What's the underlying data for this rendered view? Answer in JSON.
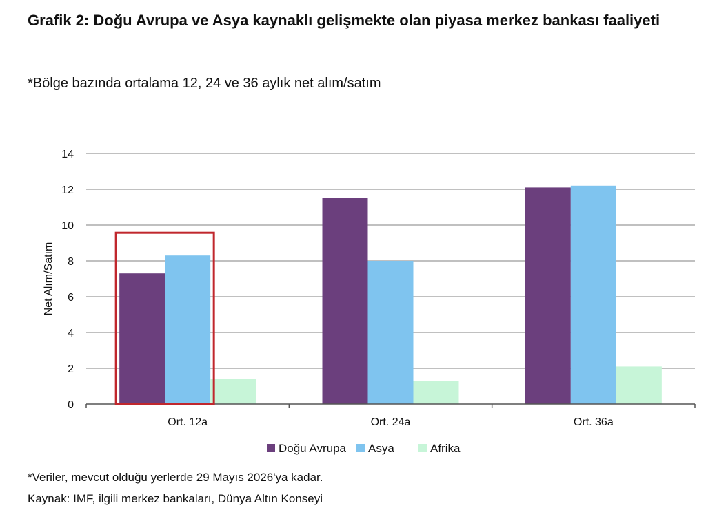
{
  "title": "Grafik 2: Doğu Avrupa ve Asya kaynaklı gelişmekte olan piyasa merkez bankası faaliyeti",
  "subtitle": "*Bölge bazında ortalama 12, 24 ve 36 aylık net alım/satım",
  "note": "*Veriler, mevcut olduğu yerlerde 29 Mayıs 2026'ya kadar.",
  "source": "Kaynak: IMF, ilgili merkez bankaları, Dünya Altın Konseyi",
  "chart_data": {
    "type": "bar",
    "categories": [
      "Ort. 12a",
      "Ort. 24a",
      "Ort. 36a"
    ],
    "series": [
      {
        "name": "Doğu Avrupa",
        "values": [
          7.3,
          11.5,
          12.1
        ],
        "color": "#6b3f7d"
      },
      {
        "name": "Asya",
        "values": [
          8.3,
          8.0,
          12.2
        ],
        "color": "#7fc4ef"
      },
      {
        "name": "Afrika",
        "values": [
          1.4,
          1.3,
          2.1
        ],
        "color": "#c7f5d8"
      }
    ],
    "ylabel": "Net Alım/Satım",
    "xlabel": "",
    "ylim": [
      0,
      14
    ],
    "yticks": [
      0,
      2,
      4,
      6,
      8,
      10,
      12,
      14
    ],
    "grid": true,
    "legend": "bottom",
    "highlight": {
      "category": "Ort. 12a",
      "series": [
        "Doğu Avrupa",
        "Asya"
      ],
      "color": "#c0272d"
    }
  }
}
